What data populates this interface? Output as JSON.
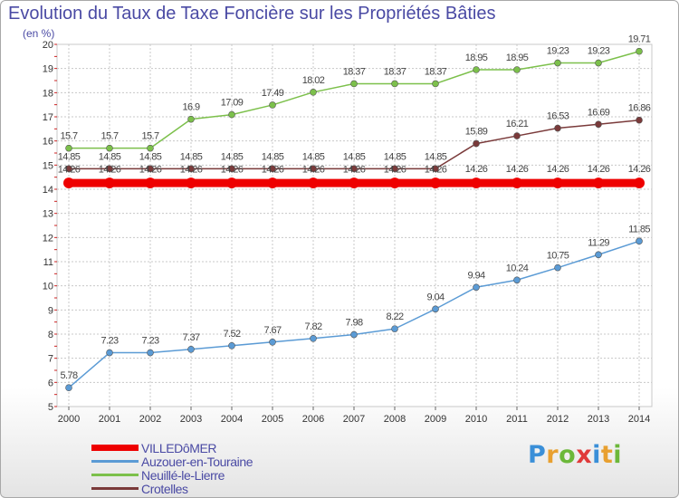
{
  "title": "Evolution du Taux de Taxe Foncière sur les Propriétés Bâties",
  "subtitle": "(en %)",
  "logo": {
    "letters": [
      "P",
      "r",
      "o",
      "x",
      "i",
      "t",
      "i"
    ],
    "colors": [
      "#3a8fd8",
      "#e8a030",
      "#6cb83a",
      "#e03a3a",
      "#3a8fd8",
      "#e8a030",
      "#6cb83a"
    ]
  },
  "chart_data": {
    "type": "line",
    "title": "Evolution du Taux de Taxe Foncière sur les Propriétés Bâties",
    "ylabel": "(en %)",
    "xlabel": "",
    "x": [
      "2000",
      "2001",
      "2002",
      "2003",
      "2004",
      "2005",
      "2006",
      "2007",
      "2008",
      "2009",
      "2010",
      "2011",
      "2012",
      "2013",
      "2014"
    ],
    "ylim": [
      5,
      20
    ],
    "yticks": [
      "5",
      "6",
      "7",
      "8",
      "9",
      "10",
      "11",
      "12",
      "13",
      "14",
      "15",
      "16",
      "17",
      "18",
      "19",
      "20"
    ],
    "grid": true,
    "legend_position": "bottom-left",
    "series": [
      {
        "name": "VILLEDôMER",
        "color": "#ee0000",
        "values": [
          14.26,
          14.26,
          14.26,
          14.26,
          14.26,
          14.26,
          14.26,
          14.26,
          14.26,
          14.26,
          14.26,
          14.26,
          14.26,
          14.26,
          14.26
        ],
        "labels": [
          "",
          "",
          "",
          "",
          "",
          "",
          "",
          "",
          "",
          "",
          "",
          "",
          "",
          "",
          ""
        ]
      },
      {
        "name": "Auzouer-en-Touraine",
        "color": "#5b9bd5",
        "values": [
          5.78,
          7.23,
          7.23,
          7.37,
          7.52,
          7.67,
          7.82,
          7.98,
          8.22,
          9.04,
          9.94,
          10.24,
          10.75,
          11.29,
          11.85
        ],
        "labels": [
          "5.78",
          "7.23",
          "7.23",
          "7.37",
          "7.52",
          "7.67",
          "7.82",
          "7.98",
          "8.22",
          "9.04",
          "9.94",
          "10.24",
          "10.75",
          "11.29",
          "11.85"
        ]
      },
      {
        "name": "Neuillé-le-Lierre",
        "color": "#7cc04b",
        "values": [
          15.7,
          15.7,
          15.7,
          16.9,
          17.09,
          17.49,
          18.02,
          18.37,
          18.37,
          18.37,
          18.95,
          18.95,
          19.23,
          19.23,
          19.71
        ],
        "labels": [
          "15.7",
          "15.7",
          "15.7",
          "16.9",
          "17.09",
          "17.49",
          "18.02",
          "18.37",
          "18.37",
          "18.37",
          "18.95",
          "18.95",
          "19.23",
          "19.23",
          "19.71"
        ]
      },
      {
        "name": "Crotelles",
        "color": "#7a3a3a",
        "values": [
          14.85,
          14.85,
          14.85,
          14.85,
          14.85,
          14.85,
          14.85,
          14.85,
          14.85,
          14.85,
          15.89,
          16.21,
          16.53,
          16.69,
          16.86
        ],
        "labels": [
          "14.85",
          "14.85",
          "14.85",
          "14.85",
          "14.85",
          "14.85",
          "14.85",
          "14.85",
          "14.85",
          "14.85",
          "15.89",
          "16.21",
          "16.53",
          "16.69",
          "16.86"
        ]
      }
    ],
    "overlap_labels": [
      "14.26",
      "14.26",
      "14.26",
      "14.26",
      "14.26",
      "14.26",
      "14.26",
      "14.26",
      "14.26",
      "14.26",
      "14.26",
      "14.26",
      "14.26",
      "14.26",
      "14.26"
    ]
  }
}
